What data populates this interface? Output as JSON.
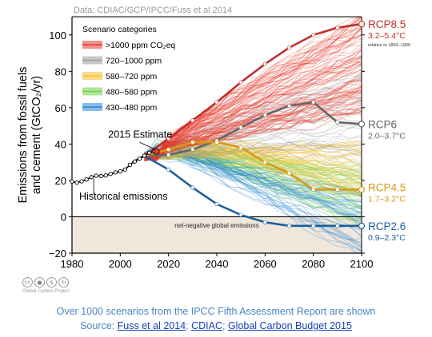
{
  "chart_data": {
    "type": "line",
    "source_note": "Data: CDIAC/GCP/IPCC/Fuss et al 2014",
    "ylabel_line1": "Emissions from fossil fuels",
    "ylabel_line2": "and cement (GtCO₂/yr)",
    "xlim": [
      1980,
      2100
    ],
    "ylim": [
      -20,
      110
    ],
    "x_ticks": [
      "1980",
      "2000",
      "2020",
      "2040",
      "2060",
      "2080",
      "2100"
    ],
    "y_ticks": [
      "100",
      "80",
      "60",
      "40",
      "20",
      "0",
      "−20"
    ],
    "legend_title": "Scenario categories",
    "legend": [
      {
        "label": ">1000 ppm CO₂eq",
        "color": "#e8392e"
      },
      {
        "label": "720–1000 ppm",
        "color": "#9a9a9a"
      },
      {
        "label": "580–720 ppm",
        "color": "#f2c02e"
      },
      {
        "label": "480–580 ppm",
        "color": "#6fd04a"
      },
      {
        "label": "430–480 ppm",
        "color": "#2a86d6"
      }
    ],
    "historical": {
      "name": "Historical emissions",
      "x": [
        1980,
        1982,
        1984,
        1986,
        1988,
        1990,
        1992,
        1994,
        1996,
        1998,
        2000,
        2002,
        2004,
        2006,
        2008,
        2010,
        2012,
        2014
      ],
      "y": [
        19.4,
        18.8,
        19.5,
        20.5,
        21.8,
        22.6,
        22.4,
        22.7,
        23.6,
        24.4,
        25.0,
        26.0,
        28.6,
        30.4,
        32.0,
        33.6,
        35.2,
        36.0
      ]
    },
    "estimate_2015": {
      "label": "2015 Estimate",
      "x": 2015,
      "y": 36.0
    },
    "zero_line_note": "net-negative global emissions",
    "series": [
      {
        "name": "RCP8.5",
        "range": "3.2–5.4°C",
        "note": "relative to 1850–1900",
        "color": "#c0302a",
        "x": [
          2005,
          2010,
          2020,
          2030,
          2040,
          2050,
          2060,
          2070,
          2080,
          2090,
          2100
        ],
        "y": [
          30,
          33.5,
          43,
          53,
          63,
          74,
          84,
          93,
          100,
          104,
          106
        ]
      },
      {
        "name": "RCP6",
        "range": "2.0–3.7°C",
        "color": "#666666",
        "x": [
          2005,
          2010,
          2020,
          2030,
          2040,
          2050,
          2060,
          2070,
          2080,
          2090,
          2100
        ],
        "y": [
          30,
          33.5,
          34,
          37,
          42,
          49,
          56,
          61,
          63,
          52,
          51
        ]
      },
      {
        "name": "RCP4.5",
        "range": "1.7–3.2°C",
        "color": "#d99a17",
        "x": [
          2005,
          2010,
          2020,
          2030,
          2040,
          2050,
          2060,
          2070,
          2080,
          2090,
          2100
        ],
        "y": [
          30,
          33.5,
          37,
          41,
          41,
          38,
          30,
          24,
          15,
          15,
          15
        ]
      },
      {
        "name": "RCP2.6",
        "range": "0.9–2.3°C",
        "color": "#1b5f9e",
        "x": [
          2005,
          2010,
          2020,
          2030,
          2040,
          2050,
          2060,
          2070,
          2080,
          2090,
          2100
        ],
        "y": [
          30,
          33.5,
          26,
          16,
          7,
          1,
          -3,
          -5,
          -5,
          -5,
          -5
        ]
      }
    ]
  },
  "caption": {
    "line1": "Over 1000 scenarios from the IPCC Fifth Assessment Report are shown",
    "source_prefix": "Source:",
    "links": [
      "Fuss et al 2014",
      "CDIAC",
      "Global Carbon Budget 2015"
    ]
  },
  "license_note": "Global Carbon Project"
}
